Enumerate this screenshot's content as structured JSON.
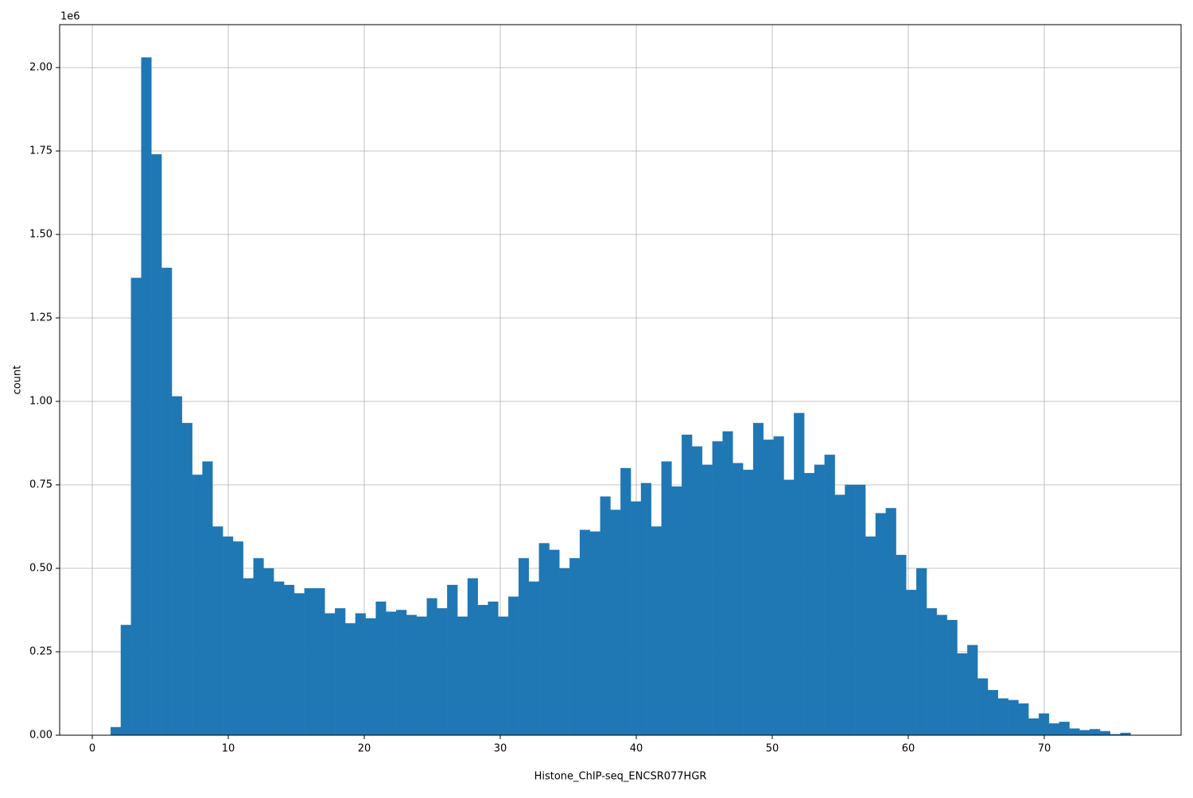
{
  "chart_data": {
    "type": "histogram",
    "x_label": "Histone_ChIP-seq_ENCSR077HGR",
    "y_label": "count",
    "y_offset_label": "1e6",
    "color": "#1f77b4",
    "grid": true,
    "xlim": [
      -2.4,
      80.06
    ],
    "ylim": [
      0,
      2128600
    ],
    "xticks": [
      0,
      10,
      20,
      30,
      40,
      50,
      60,
      70
    ],
    "yticks": [
      {
        "value": 0,
        "label": "0.00"
      },
      {
        "value": 250000,
        "label": "0.25"
      },
      {
        "value": 500000,
        "label": "0.50"
      },
      {
        "value": 750000,
        "label": "0.75"
      },
      {
        "value": 1000000,
        "label": "1.00"
      },
      {
        "value": 1250000,
        "label": "1.25"
      },
      {
        "value": 1500000,
        "label": "1.50"
      },
      {
        "value": 1750000,
        "label": "1.75"
      },
      {
        "value": 2000000,
        "label": "2.00"
      }
    ],
    "bins": [
      1.35,
      2.1,
      2.85,
      3.6,
      4.35,
      5.1,
      5.85,
      6.6,
      7.35,
      8.1,
      8.85,
      9.6,
      10.35,
      11.1,
      11.85,
      12.6,
      13.35,
      14.1,
      14.85,
      15.6,
      16.35,
      17.1,
      17.85,
      18.6,
      19.35,
      20.1,
      20.85,
      21.6,
      22.35,
      23.1,
      23.85,
      24.6,
      25.35,
      26.1,
      26.85,
      27.6,
      28.35,
      29.1,
      29.85,
      30.6,
      31.35,
      32.1,
      32.85,
      33.6,
      34.35,
      35.1,
      35.85,
      36.6,
      37.35,
      38.1,
      38.85,
      39.6,
      40.35,
      41.1,
      41.85,
      42.6,
      43.35,
      44.1,
      44.85,
      45.6,
      46.35,
      47.1,
      47.85,
      48.6,
      49.35,
      50.1,
      50.85,
      51.6,
      52.35,
      53.1,
      53.85,
      54.6,
      55.35,
      56.1,
      56.85,
      57.6,
      58.35,
      59.1,
      59.85,
      60.6,
      61.35,
      62.1,
      62.85,
      63.6,
      64.35,
      65.1,
      65.85,
      66.6,
      67.35,
      68.1,
      68.85,
      69.6,
      70.35,
      71.1,
      71.85,
      72.6,
      73.35,
      74.1,
      74.85,
      75.6,
      76.35
    ],
    "values": [
      24000,
      330000,
      1370000,
      2030000,
      1740000,
      1400000,
      1015000,
      935000,
      780000,
      820000,
      625000,
      595000,
      580000,
      470000,
      530000,
      500000,
      460000,
      450000,
      425000,
      440000,
      440000,
      365000,
      380000,
      335000,
      365000,
      350000,
      400000,
      370000,
      375000,
      360000,
      355000,
      410000,
      380000,
      450000,
      355000,
      470000,
      390000,
      400000,
      355000,
      415000,
      530000,
      460000,
      575000,
      555000,
      500000,
      530000,
      615000,
      610000,
      715000,
      675000,
      800000,
      700000,
      755000,
      625000,
      820000,
      745000,
      900000,
      865000,
      810000,
      880000,
      910000,
      815000,
      795000,
      935000,
      885000,
      895000,
      765000,
      965000,
      785000,
      810000,
      840000,
      720000,
      750000,
      750000,
      595000,
      665000,
      680000,
      540000,
      435000,
      500000,
      380000,
      360000,
      345000,
      245000,
      270000,
      170000,
      135000,
      110000,
      105000,
      95000,
      50000,
      65000,
      35000,
      40000,
      20000,
      15000,
      18000,
      12000,
      3000,
      7000
    ]
  }
}
